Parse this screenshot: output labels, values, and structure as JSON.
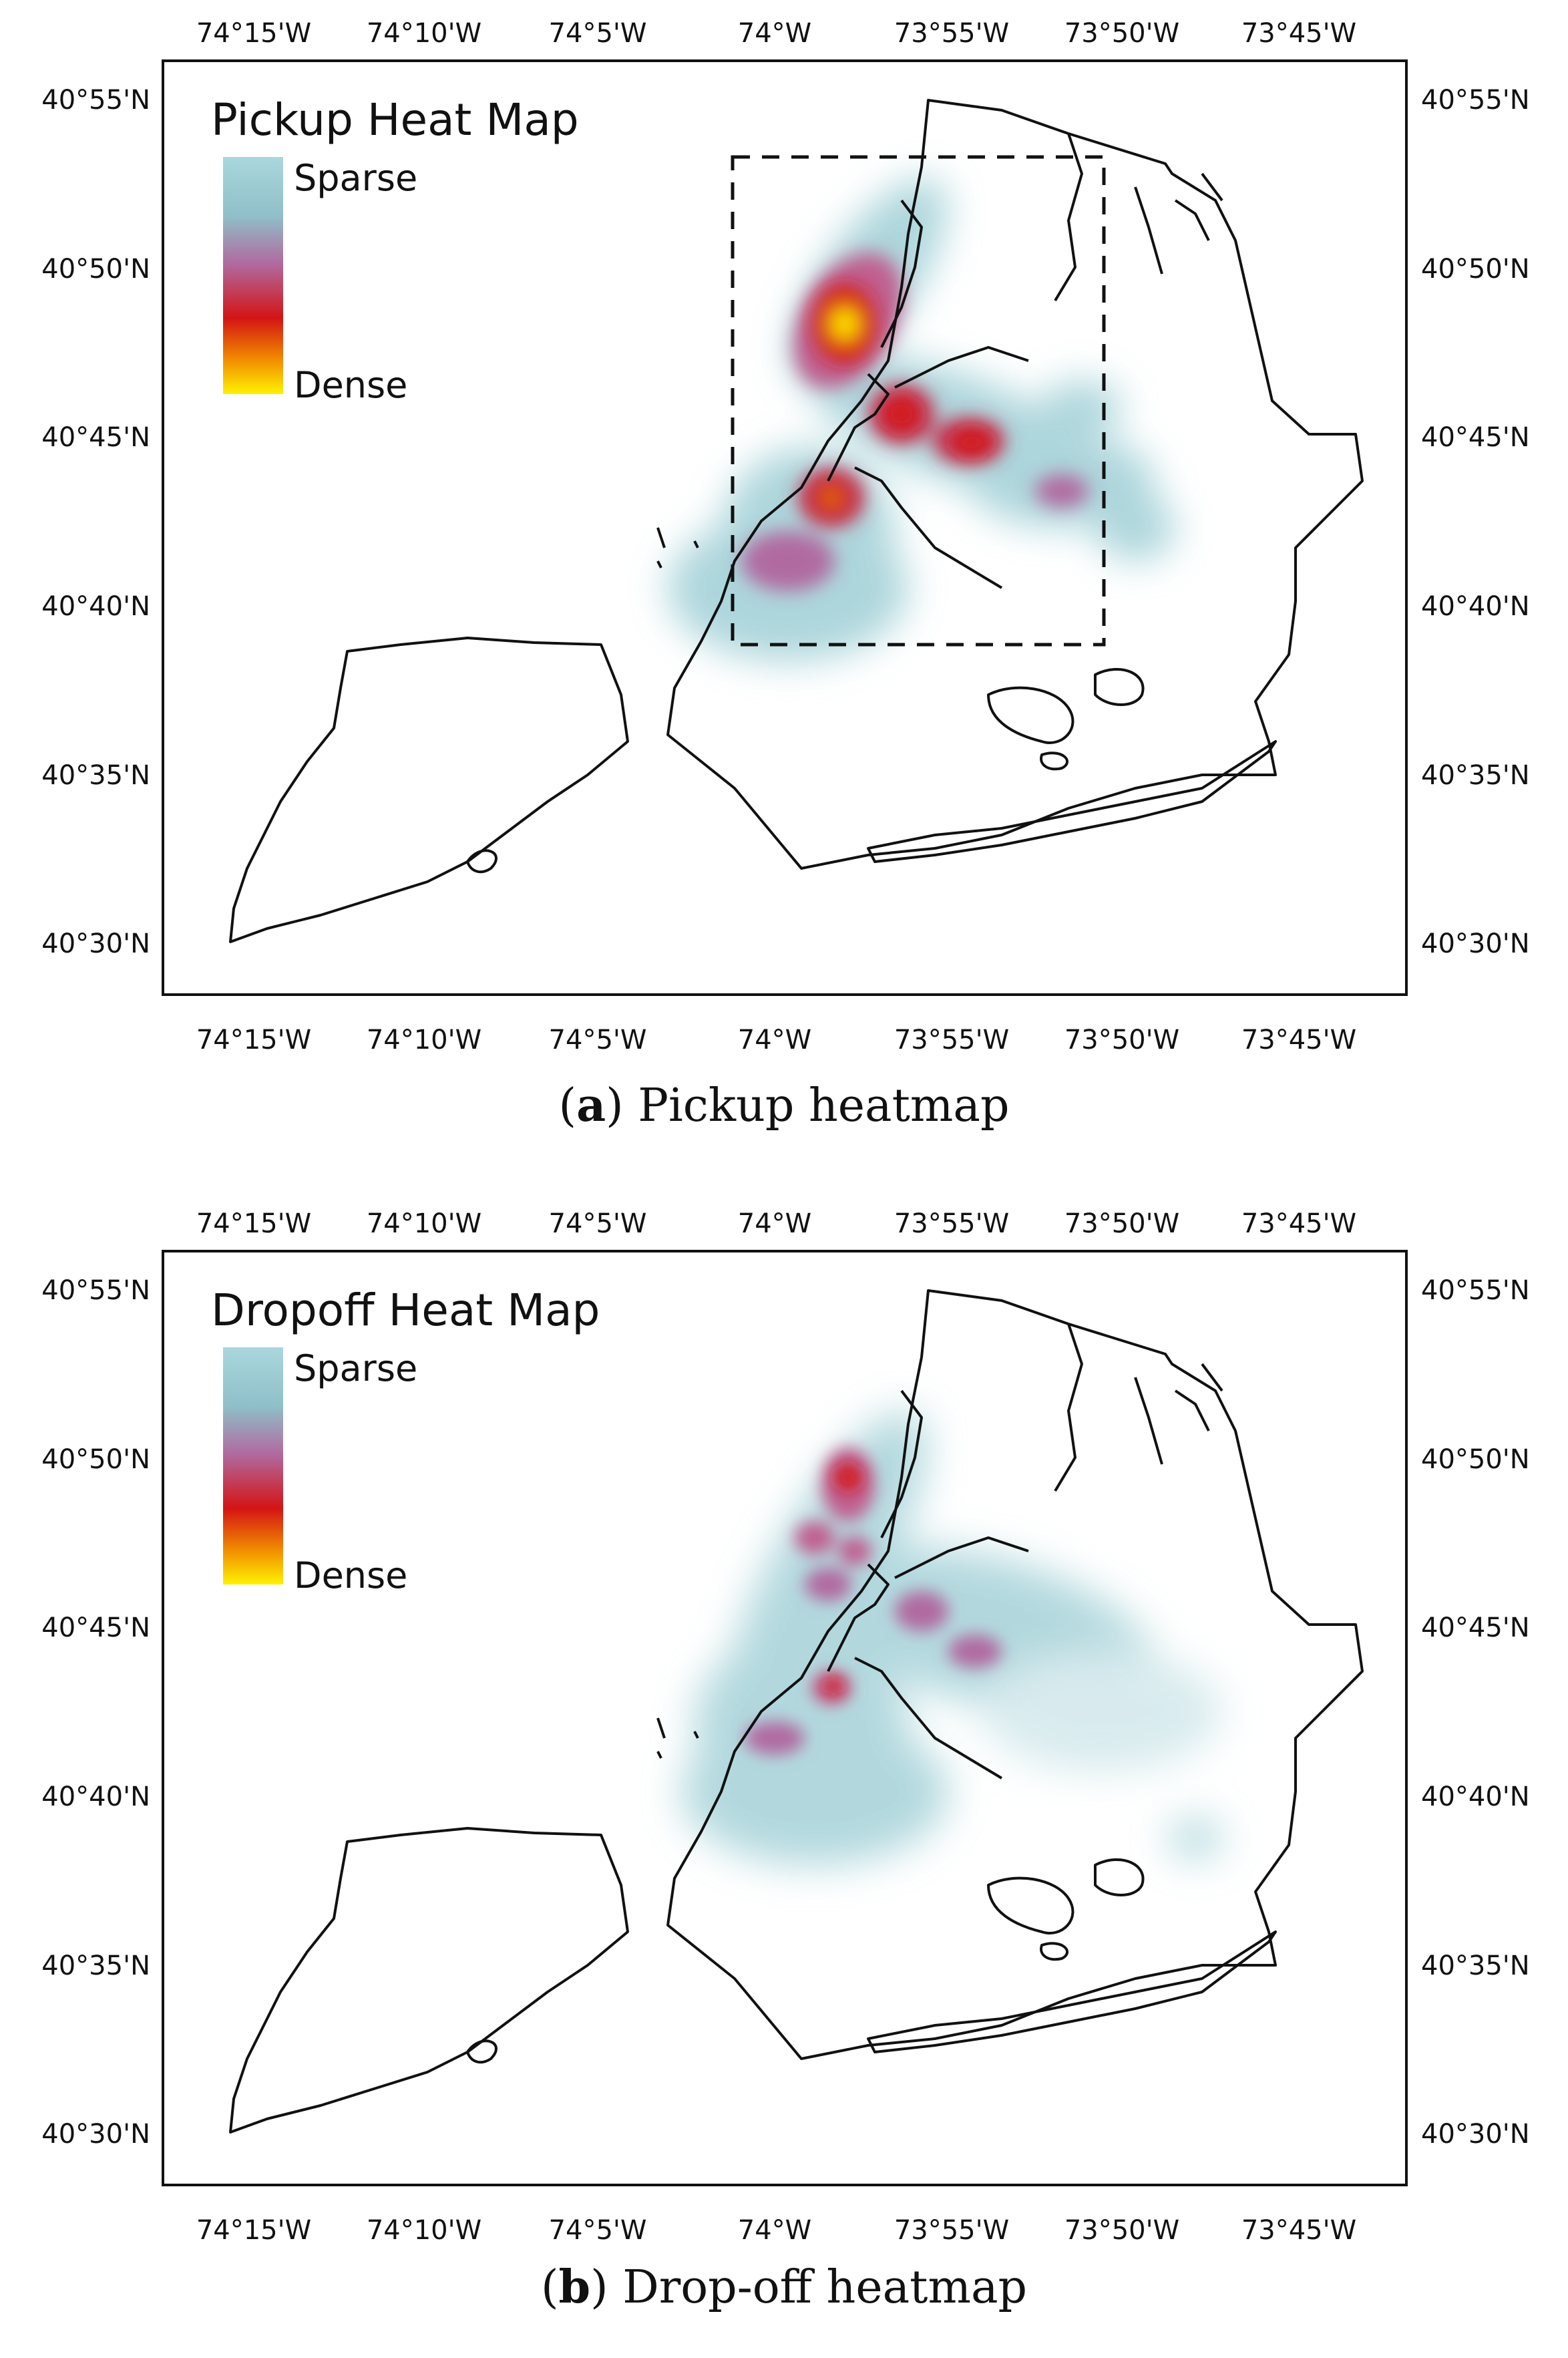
{
  "lon_labels": [
    "74°15'W",
    "74°10'W",
    "74°5'W",
    "74°W",
    "73°55'W",
    "73°50'W",
    "73°45'W"
  ],
  "lat_labels": [
    "40°55'N",
    "40°50'N",
    "40°45'N",
    "40°40'N",
    "40°35'N",
    "40°30'N"
  ],
  "panels": [
    {
      "id": "a",
      "legend_title": "Pickup Heat Map",
      "legend_sparse": "Sparse",
      "legend_dense": "Dense",
      "caption_letter": "a",
      "caption_text": "Pickup heatmap",
      "has_inset_box": true
    },
    {
      "id": "b",
      "legend_title": "Dropoff Heat Map",
      "legend_sparse": "Sparse",
      "legend_dense": "Dense",
      "caption_letter": "b",
      "caption_text": "Drop-off heatmap",
      "has_inset_box": false
    }
  ],
  "colors": {
    "sparse": "#9fcfd6",
    "mid": "#b06aa0",
    "red": "#d41414",
    "orange": "#f08a00",
    "dense": "#ffee00"
  }
}
